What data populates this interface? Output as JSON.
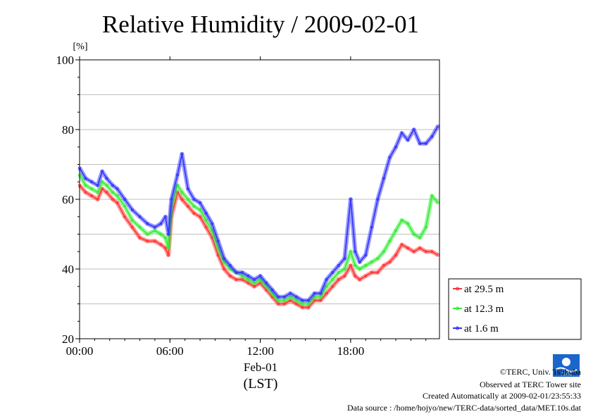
{
  "chart_data": {
    "type": "line",
    "title": "Relative Humidity / 2009-02-01",
    "ylabel": "[%]",
    "ylim": [
      20,
      100
    ],
    "yticks": [
      20,
      40,
      60,
      80,
      100
    ],
    "xlim": [
      0,
      23.9
    ],
    "xticks": [
      {
        "hour": 0,
        "label": "00:00"
      },
      {
        "hour": 6,
        "label": "06:00"
      },
      {
        "hour": 12,
        "label": "12:00"
      },
      {
        "hour": 18,
        "label": "18:00"
      }
    ],
    "date_label": "Feb-01",
    "xlabel": "(LST)",
    "grid": true,
    "legend_position": "right",
    "series": [
      {
        "name": "at 29.5 m",
        "color": "#ff3333",
        "x": [
          0,
          0.4,
          0.8,
          1.2,
          1.5,
          1.8,
          2.2,
          2.5,
          3.0,
          3.5,
          4.0,
          4.5,
          5.0,
          5.4,
          5.7,
          5.9,
          6.1,
          6.5,
          6.8,
          7.2,
          7.6,
          8.0,
          8.4,
          8.8,
          9.2,
          9.6,
          10.0,
          10.4,
          10.8,
          11.2,
          11.6,
          12.0,
          12.4,
          12.8,
          13.2,
          13.6,
          14.0,
          14.4,
          14.8,
          15.2,
          15.6,
          16.0,
          16.4,
          16.8,
          17.2,
          17.6,
          18.0,
          18.3,
          18.6,
          19.0,
          19.4,
          19.8,
          20.2,
          20.6,
          21.0,
          21.4,
          21.8,
          22.2,
          22.6,
          23.0,
          23.4,
          23.8
        ],
        "values": [
          64,
          62,
          61,
          60,
          63,
          62,
          60,
          59,
          55,
          52,
          49,
          48,
          48,
          47,
          46,
          44,
          55,
          62,
          60,
          58,
          56,
          55,
          52,
          49,
          44,
          40,
          38,
          37,
          37,
          36,
          35,
          36,
          34,
          32,
          30,
          30,
          31,
          30,
          29,
          29,
          31,
          31,
          33,
          35,
          37,
          38,
          41,
          38,
          37,
          38,
          39,
          39,
          41,
          42,
          44,
          47,
          46,
          45,
          46,
          45,
          45,
          44
        ]
      },
      {
        "name": "at 12.3 m",
        "color": "#33ee33",
        "x": [
          0,
          0.4,
          0.8,
          1.2,
          1.5,
          1.8,
          2.2,
          2.5,
          3.0,
          3.5,
          4.0,
          4.5,
          5.0,
          5.4,
          5.7,
          5.9,
          6.1,
          6.5,
          6.8,
          7.2,
          7.6,
          8.0,
          8.4,
          8.8,
          9.2,
          9.6,
          10.0,
          10.4,
          10.8,
          11.2,
          11.6,
          12.0,
          12.4,
          12.8,
          13.2,
          13.6,
          14.0,
          14.4,
          14.8,
          15.2,
          15.6,
          16.0,
          16.4,
          16.8,
          17.2,
          17.6,
          18.0,
          18.3,
          18.6,
          19.0,
          19.4,
          19.8,
          20.2,
          20.6,
          21.0,
          21.4,
          21.8,
          22.2,
          22.6,
          23.0,
          23.4,
          23.8
        ],
        "values": [
          67,
          64,
          63,
          62,
          65,
          64,
          62,
          61,
          58,
          54,
          52,
          50,
          51,
          50,
          49,
          46,
          58,
          64,
          62,
          60,
          58,
          57,
          54,
          51,
          46,
          42,
          40,
          39,
          38,
          37,
          36,
          37,
          35,
          33,
          31,
          31,
          32,
          31,
          30,
          30,
          32,
          32,
          35,
          37,
          39,
          40,
          45,
          41,
          40,
          41,
          42,
          43,
          45,
          48,
          51,
          54,
          53,
          50,
          49,
          52,
          61,
          59
        ]
      },
      {
        "name": "at 1.6 m",
        "color": "#3333ff",
        "x": [
          0,
          0.4,
          0.8,
          1.2,
          1.5,
          1.8,
          2.2,
          2.5,
          3.0,
          3.5,
          4.0,
          4.5,
          5.0,
          5.4,
          5.7,
          5.9,
          6.1,
          6.5,
          6.8,
          7.2,
          7.6,
          8.0,
          8.4,
          8.8,
          9.2,
          9.6,
          10.0,
          10.4,
          10.8,
          11.2,
          11.6,
          12.0,
          12.4,
          12.8,
          13.2,
          13.6,
          14.0,
          14.4,
          14.8,
          15.2,
          15.6,
          16.0,
          16.4,
          16.8,
          17.2,
          17.6,
          18.0,
          18.3,
          18.6,
          19.0,
          19.4,
          19.8,
          20.2,
          20.6,
          21.0,
          21.4,
          21.8,
          22.2,
          22.6,
          23.0,
          23.4,
          23.8
        ],
        "values": [
          69,
          66,
          65,
          64,
          68,
          66,
          64,
          63,
          60,
          57,
          55,
          53,
          52,
          53,
          55,
          50,
          60,
          67,
          73,
          63,
          60,
          59,
          56,
          53,
          48,
          43,
          41,
          39,
          39,
          38,
          37,
          38,
          36,
          34,
          32,
          32,
          33,
          32,
          31,
          31,
          33,
          33,
          37,
          39,
          41,
          43,
          60,
          45,
          42,
          44,
          52,
          60,
          66,
          72,
          75,
          79,
          77,
          80,
          76,
          76,
          78,
          81
        ]
      }
    ]
  },
  "footer": {
    "copyright": "©TERC, Univ. Tsukuba",
    "site": "Observed at TERC Tower site",
    "created": "Created Automatically at 2009-02-01/23:55:33",
    "source": "Data source : /home/hojyo/new/TERC-data/sorted_data/MET.10s.dat"
  },
  "logo": {
    "text": "TERC",
    "color": "#1a66cc"
  }
}
